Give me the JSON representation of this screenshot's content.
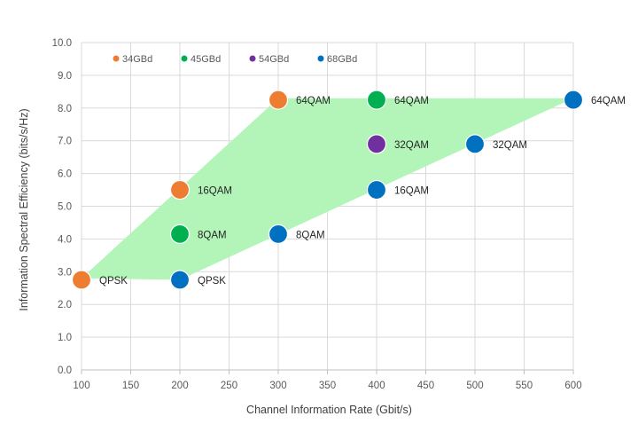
{
  "chart_data": {
    "type": "scatter",
    "xlabel": "Channel Information Rate (Gbit/s)",
    "ylabel": "Information Spectral Efficiency (bits/s/Hz)",
    "xlim": [
      100,
      600
    ],
    "ylim": [
      0,
      10
    ],
    "xticks": [
      "100",
      "150",
      "200",
      "250",
      "300",
      "350",
      "400",
      "450",
      "500",
      "550",
      "600"
    ],
    "yticks": [
      "0.0",
      "1.0",
      "2.0",
      "3.0",
      "4.0",
      "5.0",
      "6.0",
      "7.0",
      "8.0",
      "9.0",
      "10.0"
    ],
    "grid": true,
    "legend_position": "top-left",
    "region": {
      "color": "#b3f5b8",
      "polygon": [
        [
          100,
          2.8
        ],
        [
          300,
          8.3
        ],
        [
          600,
          8.3
        ],
        [
          200,
          2.75
        ]
      ]
    },
    "series": [
      {
        "name": "34GBd",
        "color": "#ed7d31",
        "points": [
          {
            "x": 100,
            "y": 2.75,
            "label": "QPSK"
          },
          {
            "x": 200,
            "y": 5.5,
            "label": "16QAM"
          },
          {
            "x": 300,
            "y": 8.25,
            "label": "64QAM"
          }
        ]
      },
      {
        "name": "45GBd",
        "color": "#00b050",
        "points": [
          {
            "x": 200,
            "y": 4.15,
            "label": "8QAM"
          },
          {
            "x": 400,
            "y": 8.25,
            "label": "64QAM"
          }
        ]
      },
      {
        "name": "54GBd",
        "color": "#7030a0",
        "points": [
          {
            "x": 400,
            "y": 6.9,
            "label": "32QAM"
          }
        ]
      },
      {
        "name": "68GBd",
        "color": "#0070c0",
        "points": [
          {
            "x": 200,
            "y": 2.75,
            "label": "QPSK"
          },
          {
            "x": 300,
            "y": 4.15,
            "label": "8QAM"
          },
          {
            "x": 400,
            "y": 5.5,
            "label": "16QAM"
          },
          {
            "x": 500,
            "y": 6.9,
            "label": "32QAM"
          },
          {
            "x": 600,
            "y": 8.25,
            "label": "64QAM"
          }
        ]
      }
    ]
  }
}
